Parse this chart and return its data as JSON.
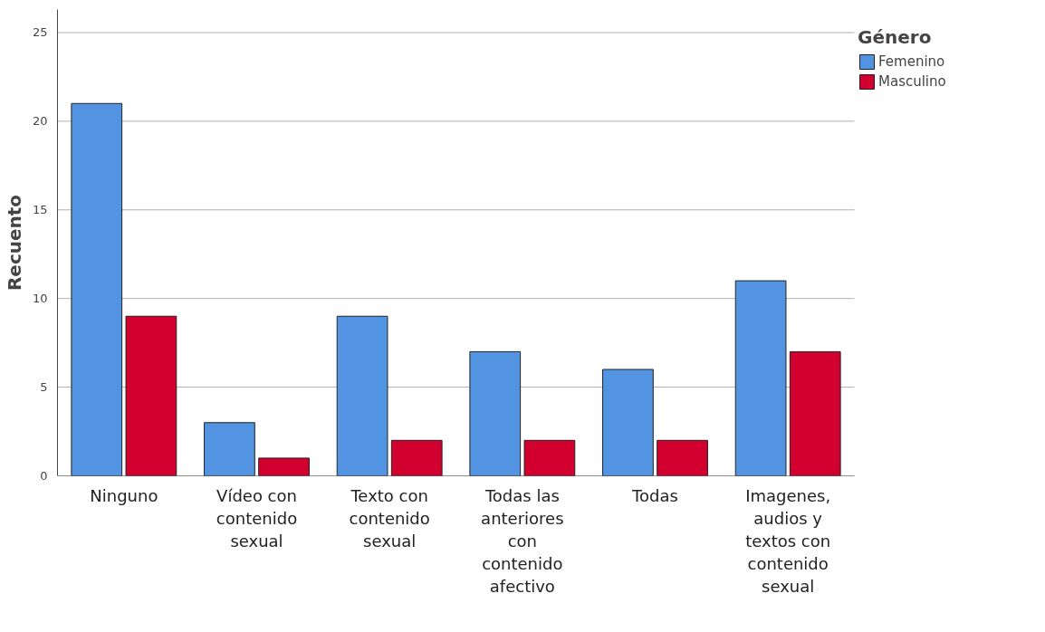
{
  "chart_data": {
    "type": "bar",
    "ylabel": "Recuento",
    "legend_title": "Género",
    "categories": [
      "Ninguno",
      "Vídeo con contenido sexual",
      "Texto con contenido sexual",
      "Todas las anteriores con contenido afectivo",
      "Todas",
      "Imagenes, audios y textos con contenido sexual"
    ],
    "series": [
      {
        "name": "Femenino",
        "color": "#5294e2",
        "values": [
          21,
          3,
          9,
          7,
          6,
          11
        ]
      },
      {
        "name": "Masculino",
        "color": "#d2002f",
        "values": [
          9,
          1,
          2,
          2,
          2,
          7
        ]
      }
    ],
    "ylim": [
      0,
      26.3
    ],
    "yticks": [
      0,
      5,
      10,
      15,
      20,
      25
    ],
    "grid": "y",
    "legend": "top right"
  }
}
